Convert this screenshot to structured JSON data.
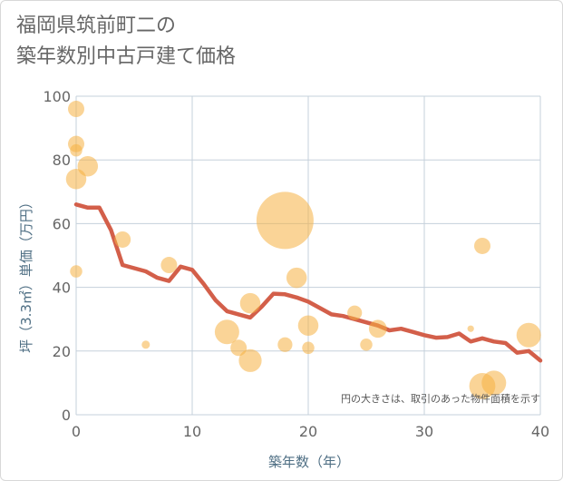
{
  "chart_data": {
    "type": "scatter",
    "title_line1": "福岡県筑前町二の",
    "title_line2": "築年数別中古戸建て価格",
    "xlabel": "築年数（年）",
    "ylabel": "坪（3.3㎡）単価（万円）",
    "xlim": [
      0,
      40
    ],
    "ylim": [
      0,
      100
    ],
    "x_ticks": [
      0,
      10,
      20,
      30,
      40
    ],
    "y_ticks": [
      0,
      20,
      40,
      60,
      80,
      100
    ],
    "grid": true,
    "note": "円の大きさは、取引のあった物件面積を示す",
    "colors": {
      "bubble": "#f5b041",
      "line": "#d35f4a",
      "grid": "#c5d0db",
      "axis_text": "#4f6f84"
    },
    "bubbles": [
      {
        "x": 0,
        "y": 96,
        "size": 2
      },
      {
        "x": 0,
        "y": 85,
        "size": 2
      },
      {
        "x": 0,
        "y": 83,
        "size": 1.5
      },
      {
        "x": 1,
        "y": 78,
        "size": 2.5
      },
      {
        "x": 0,
        "y": 74,
        "size": 2.5
      },
      {
        "x": 0,
        "y": 45,
        "size": 1.5
      },
      {
        "x": 4,
        "y": 55,
        "size": 2
      },
      {
        "x": 6,
        "y": 22,
        "size": 1
      },
      {
        "x": 8,
        "y": 47,
        "size": 2
      },
      {
        "x": 13,
        "y": 26,
        "size": 3
      },
      {
        "x": 14,
        "y": 21,
        "size": 2
      },
      {
        "x": 15,
        "y": 35,
        "size": 2.5
      },
      {
        "x": 15,
        "y": 17,
        "size": 2.8
      },
      {
        "x": 18,
        "y": 61,
        "size": 7
      },
      {
        "x": 18,
        "y": 22,
        "size": 1.8
      },
      {
        "x": 19,
        "y": 43,
        "size": 2.5
      },
      {
        "x": 20,
        "y": 28,
        "size": 2.5
      },
      {
        "x": 20,
        "y": 21,
        "size": 1.5
      },
      {
        "x": 24,
        "y": 32,
        "size": 1.8
      },
      {
        "x": 25,
        "y": 22,
        "size": 1.5
      },
      {
        "x": 26,
        "y": 27,
        "size": 2.2
      },
      {
        "x": 34,
        "y": 27,
        "size": 0.8
      },
      {
        "x": 35,
        "y": 53,
        "size": 2
      },
      {
        "x": 35,
        "y": 9,
        "size": 3.2
      },
      {
        "x": 36,
        "y": 10,
        "size": 3
      },
      {
        "x": 39,
        "y": 25,
        "size": 3
      }
    ],
    "trend": {
      "x": [
        0,
        1,
        2,
        3,
        4,
        5,
        6,
        7,
        8,
        9,
        10,
        11,
        12,
        13,
        14,
        15,
        16,
        17,
        18,
        19,
        20,
        21,
        22,
        23,
        24,
        25,
        26,
        27,
        28,
        29,
        30,
        31,
        32,
        33,
        34,
        35,
        36,
        37,
        38,
        39,
        40
      ],
      "y": [
        66,
        65,
        65,
        58,
        47,
        46,
        45,
        43,
        42,
        46.5,
        45.5,
        41,
        36,
        32.5,
        31.5,
        30.5,
        34,
        38,
        37.8,
        36.8,
        35.5,
        33.5,
        31.5,
        31,
        30,
        29,
        28,
        26.5,
        27,
        26,
        25,
        24.2,
        24.4,
        25.5,
        23,
        24,
        23,
        22.5,
        19.5,
        20,
        17
      ]
    }
  }
}
